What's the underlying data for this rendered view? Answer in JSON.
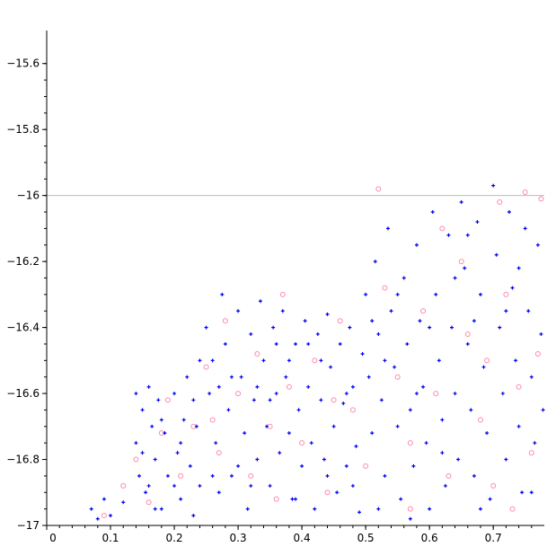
{
  "chart_data": {
    "type": "scatter",
    "title": "",
    "xlabel": "",
    "ylabel": "",
    "xlim": [
      0,
      0.78
    ],
    "ylim": [
      -17,
      -15.5
    ],
    "grid": false,
    "reference_line": {
      "y": -16,
      "color": "#bbbbbb"
    },
    "x_ticks": [
      {
        "value": 0,
        "label": "0"
      },
      {
        "value": 0.1,
        "label": "0.1"
      },
      {
        "value": 0.2,
        "label": "0.2"
      },
      {
        "value": 0.3,
        "label": "0.3"
      },
      {
        "value": 0.4,
        "label": "0.4"
      },
      {
        "value": 0.5,
        "label": "0.5"
      },
      {
        "value": 0.6,
        "label": "0.6"
      },
      {
        "value": 0.7,
        "label": "0.7"
      }
    ],
    "y_ticks": [
      {
        "value": -15.6,
        "label": "−15.6"
      },
      {
        "value": -15.8,
        "label": "−15.8"
      },
      {
        "value": -16,
        "label": "−16"
      },
      {
        "value": -16.2,
        "label": "−16.2"
      },
      {
        "value": -16.4,
        "label": "−16.4"
      },
      {
        "value": -16.6,
        "label": "−16.6"
      },
      {
        "value": -16.8,
        "label": "−16.8"
      },
      {
        "value": -17,
        "label": "−17"
      }
    ],
    "series": [
      {
        "marker": "cross",
        "color": "#0000ee",
        "points": [
          [
            0.07,
            -16.95
          ],
          [
            0.08,
            -16.98
          ],
          [
            0.09,
            -16.92
          ],
          [
            0.1,
            -16.97
          ],
          [
            0.12,
            -16.93
          ],
          [
            0.14,
            -16.6
          ],
          [
            0.14,
            -16.75
          ],
          [
            0.145,
            -16.85
          ],
          [
            0.15,
            -16.65
          ],
          [
            0.155,
            -16.9
          ],
          [
            0.16,
            -16.58
          ],
          [
            0.165,
            -16.7
          ],
          [
            0.17,
            -16.8
          ],
          [
            0.175,
            -16.62
          ],
          [
            0.18,
            -16.95
          ],
          [
            0.185,
            -16.72
          ],
          [
            0.19,
            -16.85
          ],
          [
            0.2,
            -16.6
          ],
          [
            0.205,
            -16.78
          ],
          [
            0.21,
            -16.92
          ],
          [
            0.215,
            -16.68
          ],
          [
            0.22,
            -16.55
          ],
          [
            0.225,
            -16.82
          ],
          [
            0.23,
            -16.97
          ],
          [
            0.235,
            -16.7
          ],
          [
            0.24,
            -16.88
          ],
          [
            0.25,
            -16.4
          ],
          [
            0.255,
            -16.6
          ],
          [
            0.26,
            -16.5
          ],
          [
            0.265,
            -16.75
          ],
          [
            0.27,
            -16.9
          ],
          [
            0.275,
            -16.3
          ],
          [
            0.28,
            -16.45
          ],
          [
            0.285,
            -16.65
          ],
          [
            0.29,
            -16.85
          ],
          [
            0.3,
            -16.35
          ],
          [
            0.305,
            -16.55
          ],
          [
            0.31,
            -16.72
          ],
          [
            0.315,
            -16.95
          ],
          [
            0.32,
            -16.42
          ],
          [
            0.325,
            -16.62
          ],
          [
            0.33,
            -16.8
          ],
          [
            0.335,
            -16.32
          ],
          [
            0.34,
            -16.5
          ],
          [
            0.345,
            -16.7
          ],
          [
            0.35,
            -16.88
          ],
          [
            0.355,
            -16.4
          ],
          [
            0.36,
            -16.6
          ],
          [
            0.365,
            -16.78
          ],
          [
            0.37,
            -16.35
          ],
          [
            0.375,
            -16.55
          ],
          [
            0.38,
            -16.72
          ],
          [
            0.385,
            -16.92
          ],
          [
            0.39,
            -16.45
          ],
          [
            0.395,
            -16.65
          ],
          [
            0.4,
            -16.82
          ],
          [
            0.405,
            -16.38
          ],
          [
            0.41,
            -16.58
          ],
          [
            0.415,
            -16.75
          ],
          [
            0.42,
            -16.95
          ],
          [
            0.425,
            -16.42
          ],
          [
            0.43,
            -16.62
          ],
          [
            0.435,
            -16.8
          ],
          [
            0.44,
            -16.36
          ],
          [
            0.445,
            -16.52
          ],
          [
            0.45,
            -16.7
          ],
          [
            0.455,
            -16.9
          ],
          [
            0.46,
            -16.45
          ],
          [
            0.465,
            -16.63
          ],
          [
            0.47,
            -16.82
          ],
          [
            0.475,
            -16.4
          ],
          [
            0.48,
            -16.58
          ],
          [
            0.485,
            -16.76
          ],
          [
            0.49,
            -16.96
          ],
          [
            0.495,
            -16.48
          ],
          [
            0.5,
            -16.3
          ],
          [
            0.505,
            -16.55
          ],
          [
            0.51,
            -16.72
          ],
          [
            0.515,
            -16.2
          ],
          [
            0.52,
            -16.42
          ],
          [
            0.525,
            -16.62
          ],
          [
            0.53,
            -16.85
          ],
          [
            0.535,
            -16.1
          ],
          [
            0.54,
            -16.35
          ],
          [
            0.545,
            -16.52
          ],
          [
            0.55,
            -16.7
          ],
          [
            0.555,
            -16.92
          ],
          [
            0.56,
            -16.25
          ],
          [
            0.565,
            -16.45
          ],
          [
            0.57,
            -16.65
          ],
          [
            0.575,
            -16.82
          ],
          [
            0.58,
            -16.15
          ],
          [
            0.585,
            -16.38
          ],
          [
            0.59,
            -16.58
          ],
          [
            0.595,
            -16.75
          ],
          [
            0.6,
            -16.95
          ],
          [
            0.605,
            -16.05
          ],
          [
            0.61,
            -16.3
          ],
          [
            0.615,
            -16.5
          ],
          [
            0.62,
            -16.68
          ],
          [
            0.625,
            -16.88
          ],
          [
            0.63,
            -16.12
          ],
          [
            0.635,
            -16.4
          ],
          [
            0.64,
            -16.6
          ],
          [
            0.645,
            -16.8
          ],
          [
            0.65,
            -16.02
          ],
          [
            0.655,
            -16.22
          ],
          [
            0.66,
            -16.45
          ],
          [
            0.665,
            -16.65
          ],
          [
            0.67,
            -16.85
          ],
          [
            0.675,
            -16.08
          ],
          [
            0.68,
            -16.3
          ],
          [
            0.685,
            -16.52
          ],
          [
            0.69,
            -16.72
          ],
          [
            0.695,
            -16.92
          ],
          [
            0.7,
            -15.97
          ],
          [
            0.705,
            -16.18
          ],
          [
            0.71,
            -16.4
          ],
          [
            0.715,
            -16.6
          ],
          [
            0.72,
            -16.8
          ],
          [
            0.725,
            -16.05
          ],
          [
            0.73,
            -16.28
          ],
          [
            0.735,
            -16.5
          ],
          [
            0.74,
            -16.7
          ],
          [
            0.745,
            -16.9
          ],
          [
            0.75,
            -16.1
          ],
          [
            0.755,
            -16.35
          ],
          [
            0.76,
            -16.55
          ],
          [
            0.765,
            -16.75
          ],
          [
            0.77,
            -16.15
          ],
          [
            0.775,
            -16.42
          ],
          [
            0.778,
            -16.65
          ],
          [
            0.67,
            -16.38
          ],
          [
            0.62,
            -16.78
          ],
          [
            0.58,
            -16.6
          ],
          [
            0.55,
            -16.3
          ],
          [
            0.52,
            -16.95
          ],
          [
            0.48,
            -16.88
          ],
          [
            0.44,
            -16.85
          ],
          [
            0.41,
            -16.45
          ],
          [
            0.38,
            -16.5
          ],
          [
            0.35,
            -16.62
          ],
          [
            0.32,
            -16.88
          ],
          [
            0.29,
            -16.55
          ],
          [
            0.26,
            -16.85
          ],
          [
            0.23,
            -16.62
          ],
          [
            0.2,
            -16.88
          ],
          [
            0.17,
            -16.95
          ],
          [
            0.15,
            -16.78
          ],
          [
            0.68,
            -16.95
          ],
          [
            0.72,
            -16.35
          ],
          [
            0.74,
            -16.22
          ],
          [
            0.76,
            -16.9
          ],
          [
            0.64,
            -16.25
          ],
          [
            0.6,
            -16.4
          ],
          [
            0.57,
            -16.98
          ],
          [
            0.53,
            -16.5
          ],
          [
            0.51,
            -16.38
          ],
          [
            0.47,
            -16.6
          ],
          [
            0.43,
            -16.5
          ],
          [
            0.39,
            -16.92
          ],
          [
            0.36,
            -16.45
          ],
          [
            0.33,
            -16.58
          ],
          [
            0.3,
            -16.82
          ],
          [
            0.27,
            -16.58
          ],
          [
            0.24,
            -16.5
          ],
          [
            0.21,
            -16.75
          ],
          [
            0.18,
            -16.68
          ],
          [
            0.16,
            -16.88
          ],
          [
            0.66,
            -16.12
          ]
        ]
      },
      {
        "marker": "circle",
        "color": "#ff88aa",
        "points": [
          [
            0.09,
            -16.97
          ],
          [
            0.12,
            -16.88
          ],
          [
            0.14,
            -16.8
          ],
          [
            0.16,
            -16.93
          ],
          [
            0.19,
            -16.62
          ],
          [
            0.21,
            -16.85
          ],
          [
            0.23,
            -16.7
          ],
          [
            0.25,
            -16.52
          ],
          [
            0.27,
            -16.78
          ],
          [
            0.28,
            -16.38
          ],
          [
            0.3,
            -16.6
          ],
          [
            0.32,
            -16.85
          ],
          [
            0.33,
            -16.48
          ],
          [
            0.35,
            -16.7
          ],
          [
            0.37,
            -16.3
          ],
          [
            0.38,
            -16.58
          ],
          [
            0.4,
            -16.75
          ],
          [
            0.42,
            -16.5
          ],
          [
            0.44,
            -16.9
          ],
          [
            0.46,
            -16.38
          ],
          [
            0.48,
            -16.65
          ],
          [
            0.5,
            -16.82
          ],
          [
            0.52,
            -15.98
          ],
          [
            0.53,
            -16.28
          ],
          [
            0.55,
            -16.55
          ],
          [
            0.57,
            -16.75
          ],
          [
            0.59,
            -16.35
          ],
          [
            0.61,
            -16.6
          ],
          [
            0.63,
            -16.85
          ],
          [
            0.65,
            -16.2
          ],
          [
            0.66,
            -16.42
          ],
          [
            0.68,
            -16.68
          ],
          [
            0.7,
            -16.88
          ],
          [
            0.71,
            -16.02
          ],
          [
            0.72,
            -16.3
          ],
          [
            0.74,
            -16.58
          ],
          [
            0.75,
            -15.99
          ],
          [
            0.76,
            -16.78
          ],
          [
            0.775,
            -16.01
          ],
          [
            0.77,
            -16.48
          ],
          [
            0.57,
            -16.95
          ],
          [
            0.45,
            -16.62
          ],
          [
            0.36,
            -16.92
          ],
          [
            0.26,
            -16.68
          ],
          [
            0.18,
            -16.72
          ],
          [
            0.62,
            -16.1
          ],
          [
            0.69,
            -16.5
          ],
          [
            0.73,
            -16.95
          ]
        ]
      }
    ]
  }
}
